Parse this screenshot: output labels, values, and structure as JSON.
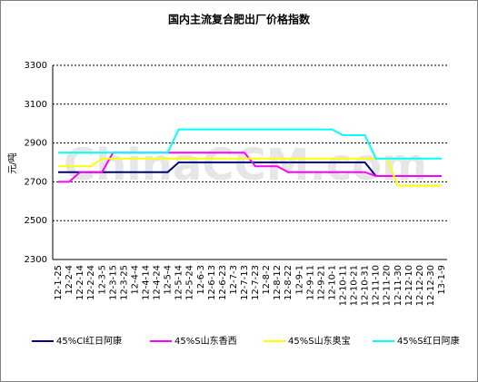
{
  "chart_data": {
    "type": "line",
    "title": "国内主流复合肥出厂价格指数",
    "watermark": "ChinaCCM.com",
    "y_label": "元/吨",
    "categories": [
      "12-1-25",
      "12-2-4",
      "12-2-14",
      "12-2-24",
      "12-3-5",
      "12-3-15",
      "12-3-25",
      "12-4-4",
      "12-4-14",
      "12-4-24",
      "12-5-4",
      "12-5-14",
      "12-5-24",
      "12-6-3",
      "12-6-13",
      "12-6-23",
      "12-7-3",
      "12-7-13",
      "12-7-23",
      "12-8-2",
      "12-8-12",
      "12-8-22",
      "12-9-1",
      "12-9-11",
      "12-9-21",
      "12-10-1",
      "12-10-11",
      "12-10-21",
      "12-10-31",
      "12-11-10",
      "12-11-20",
      "12-11-30",
      "12-12-10",
      "12-12-20",
      "12-12-30",
      "13-1-9"
    ],
    "series": [
      {
        "name": "45%Cl红日阿康",
        "color": "#000080",
        "values": [
          2750,
          2750,
          2750,
          2750,
          2750,
          2750,
          2750,
          2750,
          2750,
          2750,
          2750,
          2800,
          2800,
          2800,
          2800,
          2800,
          2800,
          2800,
          2800,
          2800,
          2800,
          2800,
          2800,
          2800,
          2800,
          2800,
          2800,
          2800,
          2800,
          2730,
          2730,
          2730,
          2730,
          2730,
          2730,
          2730
        ]
      },
      {
        "name": "45%S山东香西",
        "color": "#ff00ff",
        "values": [
          2700,
          2700,
          2750,
          2750,
          2750,
          2850,
          2850,
          2850,
          2850,
          2850,
          2850,
          2850,
          2850,
          2850,
          2850,
          2850,
          2850,
          2850,
          2780,
          2780,
          2780,
          2750,
          2750,
          2750,
          2750,
          2750,
          2750,
          2750,
          2750,
          2730,
          2730,
          2730,
          2730,
          2730,
          2730,
          2730
        ]
      },
      {
        "name": "45%S山东奥宝",
        "color": "#ffff00",
        "values": [
          2780,
          2780,
          2780,
          2780,
          2820,
          2820,
          2820,
          2820,
          2820,
          2820,
          2820,
          2820,
          2820,
          2820,
          2820,
          2820,
          2820,
          2820,
          2820,
          2820,
          2820,
          2820,
          2820,
          2820,
          2820,
          2820,
          2820,
          2820,
          2820,
          2820,
          2820,
          2680,
          2680,
          2680,
          2680,
          2680
        ]
      },
      {
        "name": "45%S红日阿康",
        "color": "#00ffff",
        "values": [
          2850,
          2850,
          2850,
          2850,
          2850,
          2850,
          2850,
          2850,
          2850,
          2850,
          2850,
          2970,
          2970,
          2970,
          2970,
          2970,
          2970,
          2970,
          2970,
          2970,
          2970,
          2970,
          2970,
          2970,
          2970,
          2970,
          2940,
          2940,
          2940,
          2820,
          2820,
          2820,
          2820,
          2820,
          2820,
          2820
        ]
      }
    ],
    "ylim": [
      2300,
      3300
    ],
    "yticks": [
      2300,
      2500,
      2700,
      2900,
      3100,
      3300
    ],
    "grid": true
  }
}
